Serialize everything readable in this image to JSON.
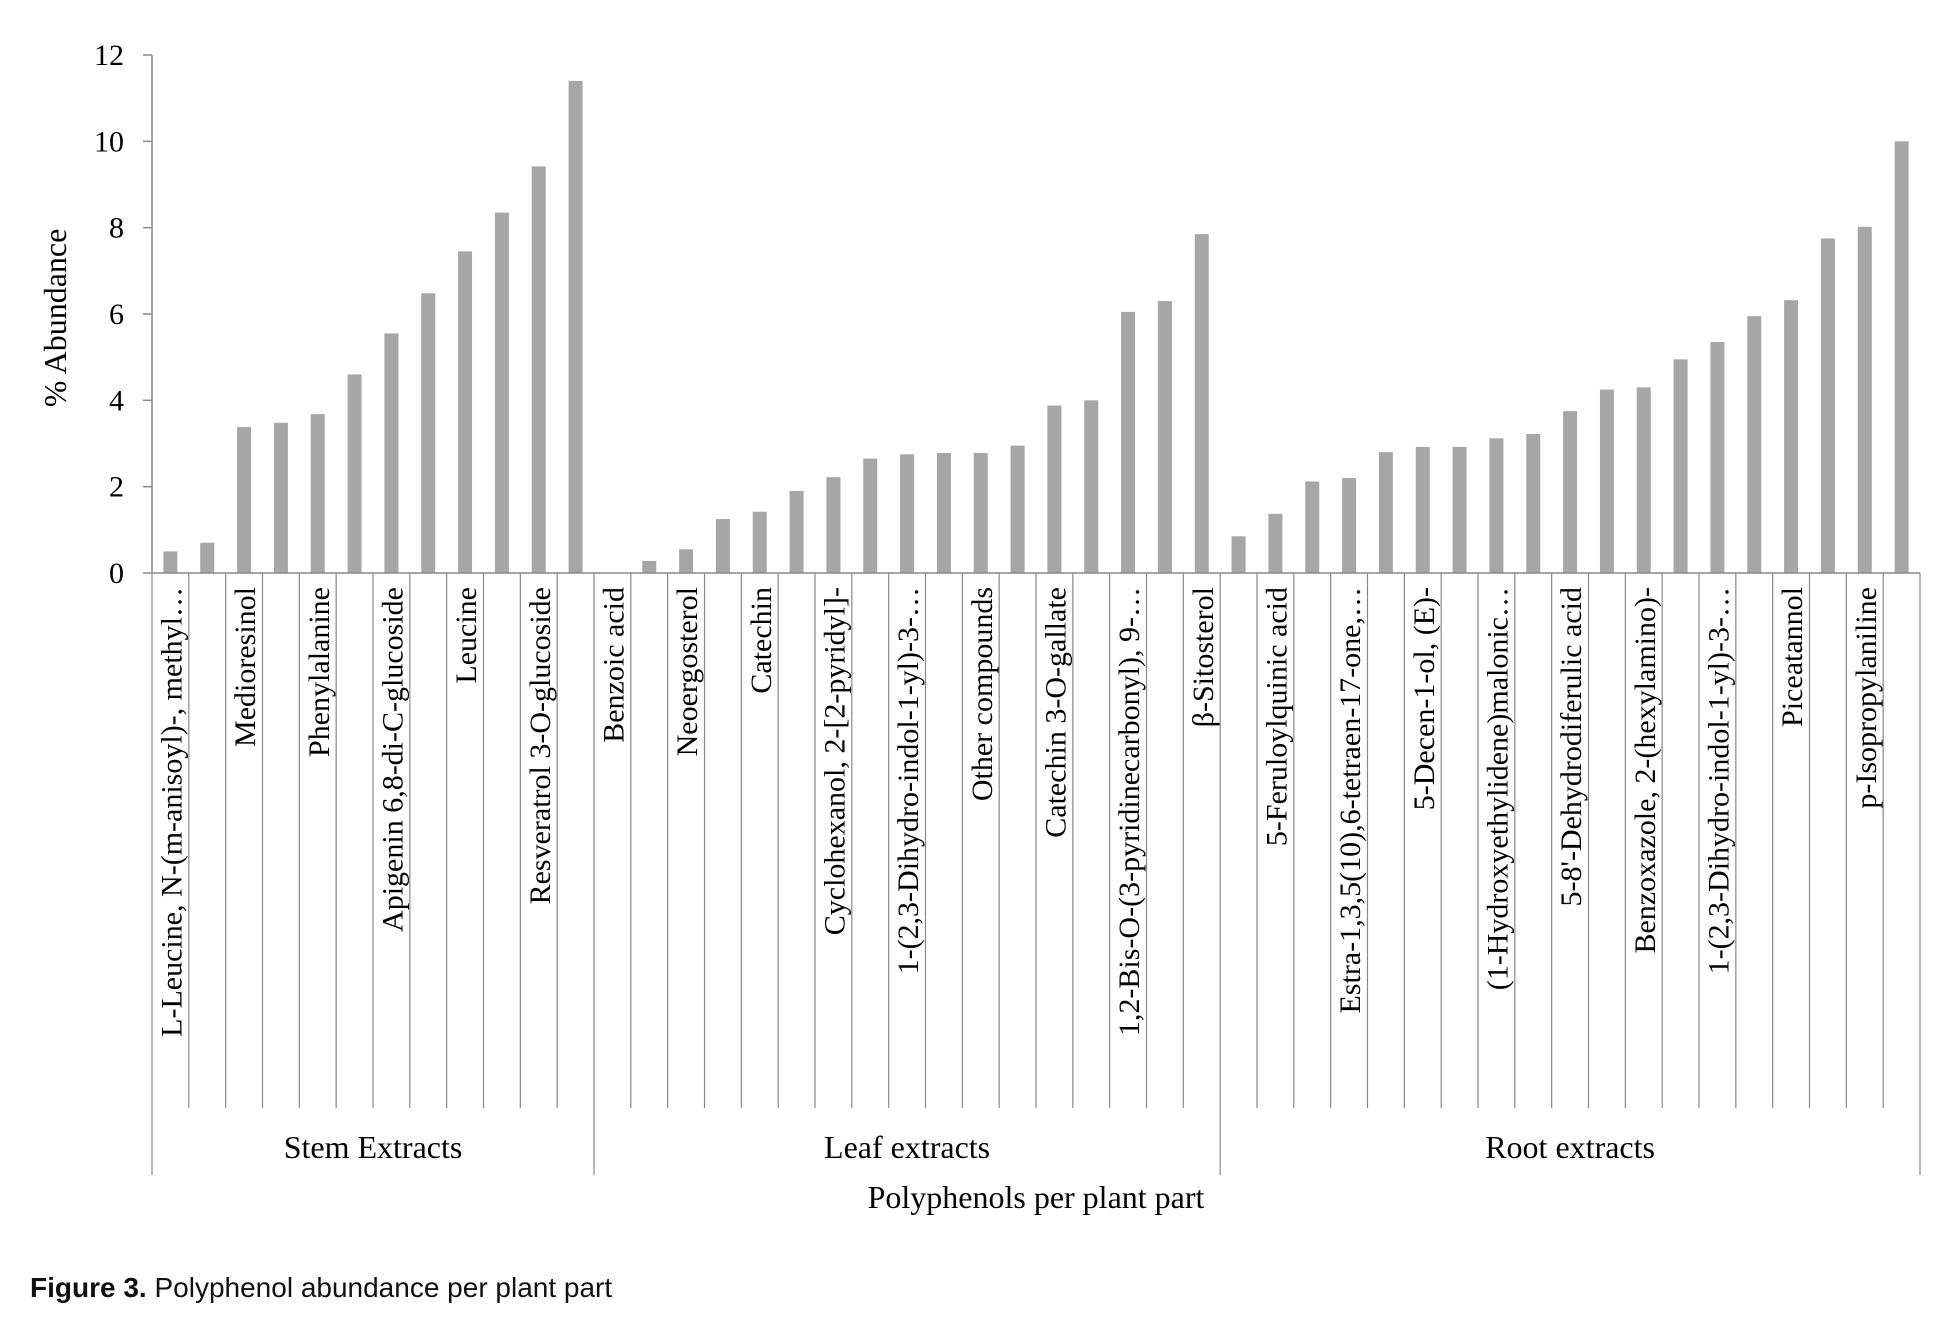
{
  "chart_data": {
    "type": "bar",
    "ylabel": "% Abundance",
    "xlabel": "Polyphenols per plant part",
    "ylim": [
      0,
      12
    ],
    "yticks": [
      "0",
      "2",
      "4",
      "6",
      "8",
      "10",
      "12"
    ],
    "grid": false,
    "bar_color": "#a6a6a6",
    "groups": [
      {
        "name": "Stem Extracts",
        "start": 0,
        "count": 12
      },
      {
        "name": "Leaf extracts",
        "start": 12,
        "count": 17
      },
      {
        "name": "Root extracts",
        "start": 29,
        "count": 19
      }
    ],
    "categories": [
      "L-Leucine, N-(m-anisoyl)-, methyl…",
      "",
      "Medioresinol",
      "",
      "Phenylalanine",
      "",
      "Apigenin 6,8-di-C-glucoside",
      "",
      "Leucine",
      "",
      "Resveratrol 3-O-glucoside",
      "",
      "Benzoic acid",
      "",
      "Neoergosterol",
      "",
      "Catechin",
      "",
      "Cyclohexanol, 2-[2-pyridyl]-",
      "",
      "1-(2,3-Dihydro-indol-1-yl)-3-…",
      "",
      "Other compounds",
      "",
      "Catechin 3-O-gallate",
      "",
      "1,2-Bis-O-(3-pyridinecarbonyl), 9-…",
      "",
      "β-Sitosterol",
      "",
      "5-Feruloylquinic acid",
      "",
      "Estra-1,3,5(10),6-tetraen-17-one,…",
      "",
      "5-Decen-1-ol, (E)-",
      "",
      "(1-Hydroxyethylidene)malonic…",
      "",
      "5-8'-Dehydrodiferulic acid",
      "",
      "Benzoxazole, 2-(hexylamino)-",
      "",
      "1-(2,3-Dihydro-indol-1-yl)-3-…",
      "",
      "Piceatannol",
      "",
      "p-Isopropylaniline",
      ""
    ],
    "values": [
      0.5,
      0.7,
      3.38,
      3.48,
      3.68,
      4.6,
      5.55,
      6.48,
      7.45,
      8.35,
      9.42,
      11.4,
      0.0,
      0.28,
      0.55,
      1.25,
      1.42,
      1.9,
      2.22,
      2.65,
      2.75,
      2.78,
      2.78,
      2.95,
      3.88,
      4.0,
      6.05,
      6.3,
      7.85,
      0.85,
      1.37,
      2.12,
      2.2,
      2.8,
      2.92,
      2.92,
      3.12,
      3.22,
      3.75,
      4.25,
      4.3,
      4.95,
      5.35,
      5.95,
      6.32,
      7.75,
      8.02,
      10.0
    ]
  },
  "figure_caption": {
    "label": "Figure 3.",
    "text": " Polyphenol abundance per plant part"
  }
}
